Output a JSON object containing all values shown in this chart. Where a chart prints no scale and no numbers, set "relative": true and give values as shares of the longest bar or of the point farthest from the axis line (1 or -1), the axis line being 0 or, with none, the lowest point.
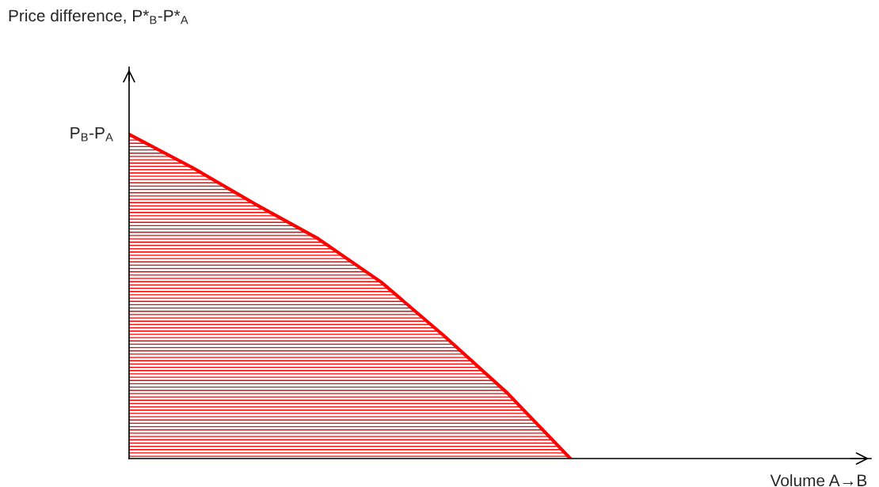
{
  "chart_data": {
    "type": "area",
    "relative": true,
    "xlabel": "Volume A→B",
    "annotations": [
      "Price difference, P*$_{B}$-P*$_{A}$",
      "P$_{B}$-P$_{A}$"
    ],
    "categories": [
      null,
      null,
      null,
      null,
      null,
      null,
      null,
      null,
      null,
      null,
      null,
      null
    ],
    "series": [
      {
        "color": "#ff0000",
        "values": [
          1,
          0.898,
          0.785,
          0.678,
          0.544,
          0.378,
          0.202,
          0,
          null,
          null,
          null,
          null
        ]
      }
    ],
    "grid": false,
    "legend": false
  }
}
